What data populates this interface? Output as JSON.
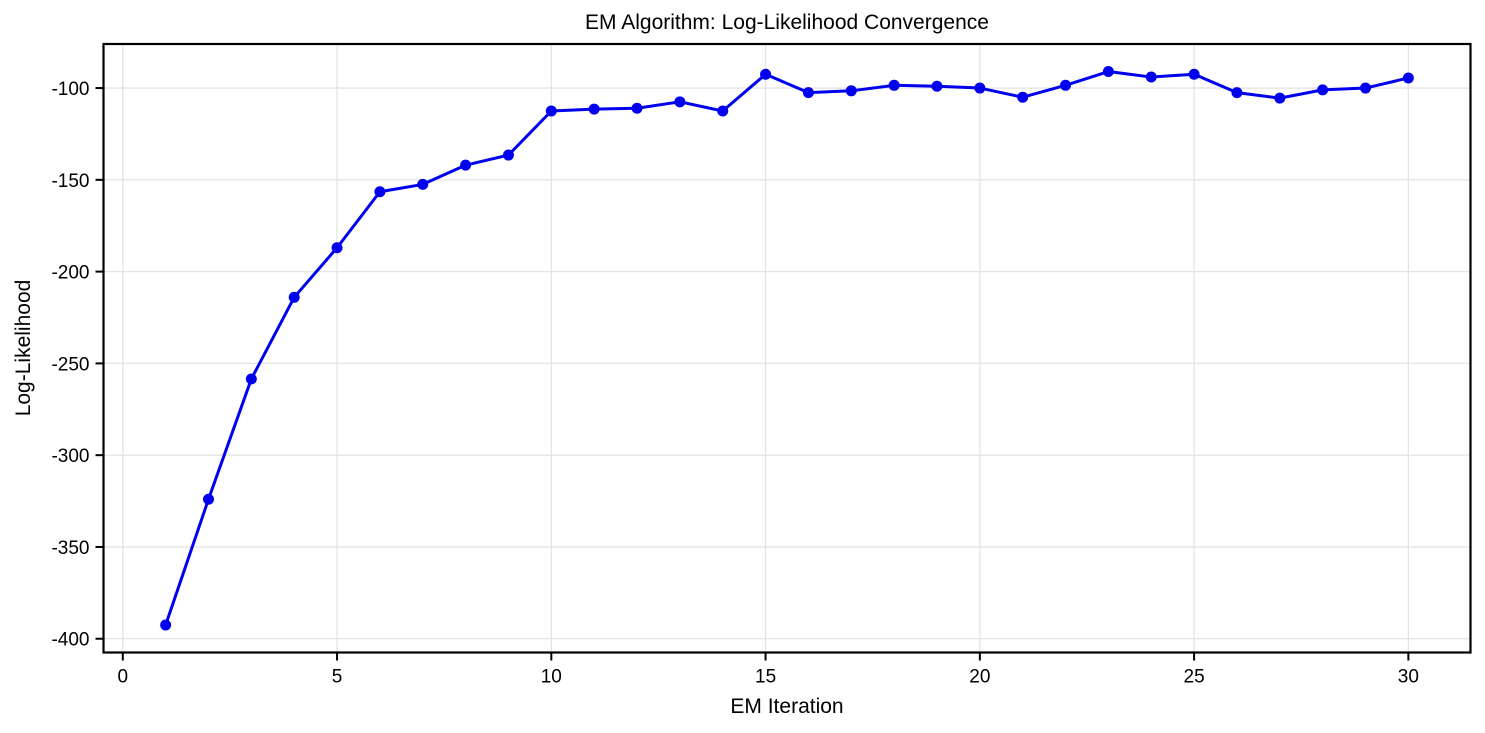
{
  "chart_data": {
    "type": "line",
    "title": "EM Algorithm: Log-Likelihood Convergence",
    "xlabel": "EM Iteration",
    "ylabel": "Log-Likelihood",
    "series": [
      {
        "name": "log-likelihood",
        "x": [
          1,
          2,
          3,
          4,
          5,
          6,
          7,
          8,
          9,
          10,
          11,
          12,
          13,
          14,
          15,
          16,
          17,
          18,
          19,
          20,
          21,
          22,
          23,
          24,
          25,
          26,
          27,
          28,
          29,
          30
        ],
        "y": [
          -392.5,
          -324,
          -258.5,
          -214,
          -187,
          -156.5,
          -152.5,
          -142,
          -136.5,
          -112.5,
          -111.5,
          -111,
          -107.5,
          -112.5,
          -92.5,
          -102.5,
          -101.5,
          -98.5,
          -99,
          -100,
          -105,
          -98.5,
          -91,
          -94,
          -92.5,
          -102.5,
          -105.5,
          -101,
          -100,
          -94.5
        ]
      }
    ],
    "x_ticks": [
      0,
      5,
      10,
      15,
      20,
      25,
      30
    ],
    "y_ticks": [
      -400,
      -350,
      -300,
      -250,
      -200,
      -150,
      -100
    ],
    "xlim": [
      -0.45,
      31.45
    ],
    "ylim": [
      -407.5,
      -76
    ],
    "grid": true,
    "legend_position": "none",
    "marker": "circle",
    "colors": {
      "line": "#0000EE",
      "grid": "#e4e4e4",
      "spine": "#000000",
      "text": "#000000",
      "background": "#ffffff"
    }
  }
}
